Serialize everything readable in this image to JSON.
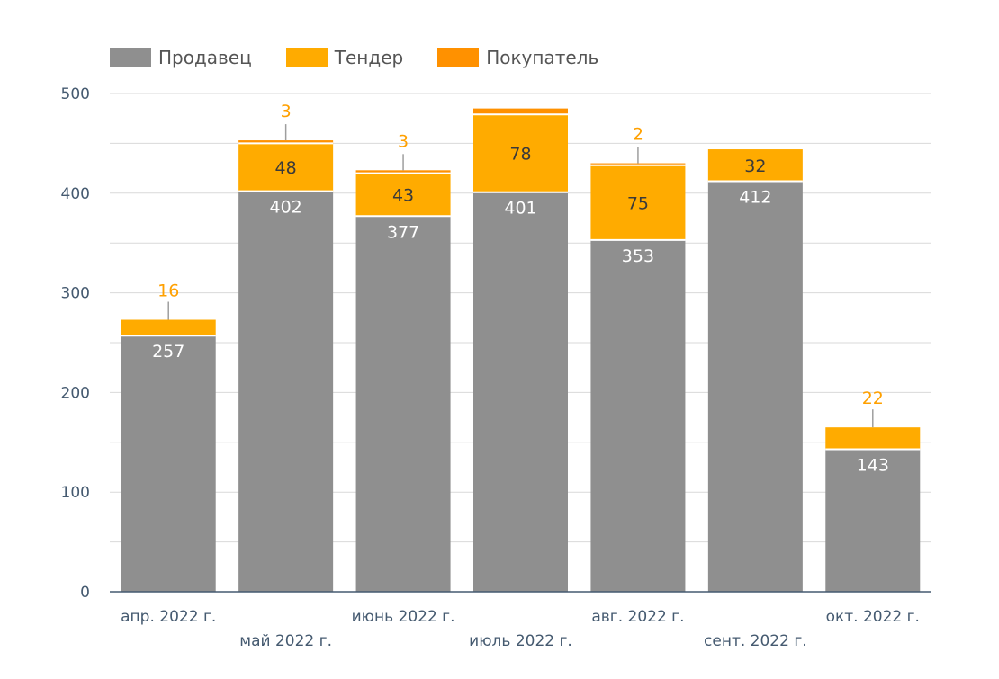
{
  "chart_data": {
    "type": "bar",
    "stacked": true,
    "categories": [
      "апр. 2022 г.",
      "май 2022 г.",
      "июнь 2022 г.",
      "июль 2022 г.",
      "авг. 2022 г.",
      "сент. 2022 г.",
      "окт. 2022 г."
    ],
    "series": [
      {
        "name": "Продавец",
        "color": "#8f8f8f",
        "values": [
          257,
          402,
          377,
          401,
          353,
          412,
          143
        ]
      },
      {
        "name": "Тендер",
        "color": "#ffab00",
        "values": [
          16,
          48,
          43,
          78,
          75,
          32,
          22
        ]
      },
      {
        "name": "Покупатель",
        "color": "#ff9100",
        "values": [
          0,
          3,
          3,
          6,
          2,
          0,
          0
        ]
      }
    ],
    "data_labels": {
      "Продавец": [
        "257",
        "402",
        "377",
        "401",
        "353",
        "412",
        "143"
      ],
      "Тендер": [
        "16",
        "48",
        "43",
        "78",
        "75",
        "32",
        "22"
      ],
      "Покупатель": [
        "",
        "3",
        "3",
        "",
        "2",
        "",
        ""
      ]
    },
    "ylim": [
      0,
      500
    ],
    "yticks": [
      0,
      100,
      200,
      300,
      400,
      500
    ],
    "grid": true,
    "legend_position": "top-left",
    "title": "",
    "xlabel": "",
    "ylabel": ""
  },
  "colors": {
    "outside_label": "#ffa000",
    "inside_label_dark": "#3a3a3a",
    "inside_label_light": "#ffffff",
    "gridline": "#d9d9d9",
    "axis": "#455a70"
  }
}
